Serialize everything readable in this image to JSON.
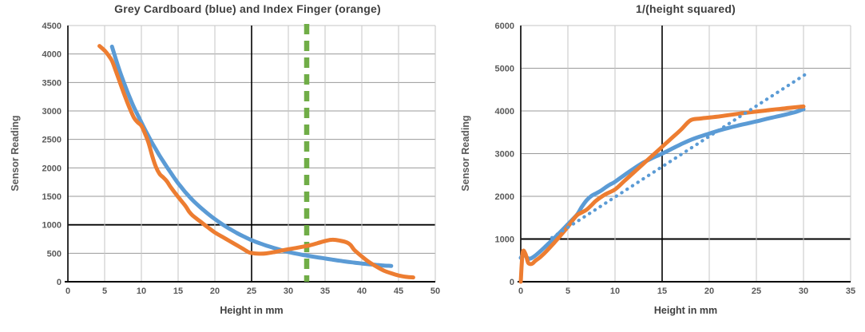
{
  "colors": {
    "blue": "#5b9bd5",
    "orange": "#ed7d31",
    "green_marker": "#70ad47",
    "grid_light": "#c6c6c6",
    "grid_mid": "#9a9a9a",
    "emphasis_line": "#000000",
    "axis_line": "#1a1a1a",
    "tick_text": "#595959",
    "title_text": "#3f3f3f",
    "raw_line": "#1a1a1a"
  },
  "chart_data": [
    {
      "type": "line",
      "title": "Grey Cardboard (blue) and Index Finger (orange)",
      "xlabel": "Height in mm",
      "ylabel": "Sensor Reading",
      "xlim": [
        0,
        50
      ],
      "ylim": [
        0,
        4500
      ],
      "x_ticks": [
        0,
        5,
        10,
        15,
        20,
        25,
        30,
        35,
        40,
        45,
        50
      ],
      "y_ticks": [
        0,
        500,
        1000,
        1500,
        2000,
        2500,
        3000,
        3500,
        4000,
        4500
      ],
      "grid": true,
      "legend": "none",
      "emphasized_gridline_x": 25,
      "emphasized_gridline_y": 1000,
      "marker_line": {
        "x": 32.5,
        "style": "dashed",
        "color": "#70ad47"
      },
      "series": [
        {
          "name": "grey-cardboard-blue",
          "color": "#5b9bd5",
          "style": "solid-smooth",
          "points": [
            [
              6,
              4130
            ],
            [
              6.5,
              3920
            ],
            [
              7,
              3720
            ],
            [
              7.5,
              3540
            ],
            [
              8,
              3370
            ],
            [
              8.5,
              3210
            ],
            [
              9,
              3060
            ],
            [
              9.5,
              2930
            ],
            [
              10,
              2800
            ],
            [
              10.5,
              2670
            ],
            [
              11,
              2550
            ],
            [
              11.5,
              2430
            ],
            [
              12,
              2320
            ],
            [
              12.5,
              2210
            ],
            [
              13,
              2110
            ],
            [
              13.5,
              2010
            ],
            [
              14,
              1915
            ],
            [
              14.5,
              1820
            ],
            [
              15,
              1730
            ],
            [
              15.5,
              1650
            ],
            [
              16,
              1570
            ],
            [
              17,
              1430
            ],
            [
              18,
              1310
            ],
            [
              19,
              1200
            ],
            [
              20,
              1100
            ],
            [
              21,
              1010
            ],
            [
              22,
              930
            ],
            [
              23,
              855
            ],
            [
              24,
              790
            ],
            [
              25,
              730
            ],
            [
              26,
              680
            ],
            [
              27,
              635
            ],
            [
              28,
              595
            ],
            [
              29,
              557
            ],
            [
              30,
              523
            ],
            [
              31,
              495
            ],
            [
              32,
              470
            ],
            [
              33,
              448
            ],
            [
              34,
              428
            ],
            [
              35,
              408
            ],
            [
              36,
              388
            ],
            [
              37,
              368
            ],
            [
              38,
              350
            ],
            [
              39,
              335
            ],
            [
              40,
              320
            ],
            [
              41,
              307
            ],
            [
              42,
              295
            ],
            [
              43,
              285
            ],
            [
              44,
              277
            ]
          ]
        },
        {
          "name": "index-finger-orange",
          "color": "#ed7d31",
          "style": "solid-smooth",
          "points": [
            [
              4.3,
              4140
            ],
            [
              5,
              4060
            ],
            [
              5.5,
              3980
            ],
            [
              6,
              3880
            ],
            [
              6.5,
              3710
            ],
            [
              7,
              3530
            ],
            [
              7.5,
              3350
            ],
            [
              8,
              3180
            ],
            [
              8.5,
              3020
            ],
            [
              9,
              2880
            ],
            [
              9.5,
              2800
            ],
            [
              10,
              2740
            ],
            [
              10.5,
              2600
            ],
            [
              11,
              2430
            ],
            [
              11.5,
              2200
            ],
            [
              12,
              2010
            ],
            [
              12.5,
              1890
            ],
            [
              13,
              1830
            ],
            [
              13.5,
              1760
            ],
            [
              14,
              1660
            ],
            [
              15,
              1490
            ],
            [
              16,
              1330
            ],
            [
              16.5,
              1230
            ],
            [
              17,
              1160
            ],
            [
              18,
              1060
            ],
            [
              19,
              960
            ],
            [
              20,
              865
            ],
            [
              21,
              790
            ],
            [
              22,
              715
            ],
            [
              23,
              640
            ],
            [
              24,
              565
            ],
            [
              24.5,
              525
            ],
            [
              25,
              505
            ],
            [
              26,
              492
            ],
            [
              27,
              497
            ],
            [
              28,
              518
            ],
            [
              29,
              545
            ],
            [
              30,
              570
            ],
            [
              31,
              592
            ],
            [
              32,
              615
            ],
            [
              33,
              642
            ],
            [
              34,
              678
            ],
            [
              35,
              715
            ],
            [
              36,
              738
            ],
            [
              37,
              722
            ],
            [
              38,
              688
            ],
            [
              38.5,
              640
            ],
            [
              39,
              555
            ],
            [
              40,
              445
            ],
            [
              41,
              345
            ],
            [
              42,
              265
            ],
            [
              43,
              195
            ],
            [
              44,
              148
            ],
            [
              45,
              110
            ],
            [
              46,
              85
            ],
            [
              47,
              75
            ]
          ]
        }
      ]
    },
    {
      "type": "line",
      "title": "1/(height squared)",
      "xlabel": "Height in mm",
      "ylabel": "Sensor Reading",
      "xlim": [
        0,
        35
      ],
      "ylim": [
        0,
        6000
      ],
      "x_ticks": [
        0,
        5,
        10,
        15,
        20,
        25,
        30,
        35
      ],
      "y_ticks": [
        0,
        1000,
        2000,
        3000,
        4000,
        5000,
        6000
      ],
      "grid": true,
      "legend": "none",
      "emphasized_gridline_x": 15,
      "emphasized_gridline_y": 1000,
      "series": [
        {
          "name": "grey-cardboard-blue",
          "color": "#5b9bd5",
          "style": "solid-smooth",
          "points": [
            [
              0,
              560
            ],
            [
              0.3,
              635
            ],
            [
              0.7,
              560
            ],
            [
              1,
              540
            ],
            [
              1.5,
              605
            ],
            [
              2,
              700
            ],
            [
              2.5,
              800
            ],
            [
              3,
              905
            ],
            [
              3.5,
              1010
            ],
            [
              4,
              1120
            ],
            [
              4.5,
              1230
            ],
            [
              5,
              1345
            ],
            [
              5.5,
              1460
            ],
            [
              6,
              1580
            ],
            [
              6.5,
              1760
            ],
            [
              7,
              1910
            ],
            [
              7.5,
              2010
            ],
            [
              8,
              2070
            ],
            [
              8.5,
              2130
            ],
            [
              9,
              2210
            ],
            [
              9.5,
              2280
            ],
            [
              10,
              2340
            ],
            [
              11,
              2500
            ],
            [
              12,
              2650
            ],
            [
              13,
              2790
            ],
            [
              14,
              2900
            ],
            [
              15,
              3000
            ],
            [
              16,
              3110
            ],
            [
              17,
              3220
            ],
            [
              18,
              3320
            ],
            [
              19,
              3400
            ],
            [
              20,
              3470
            ],
            [
              21,
              3540
            ],
            [
              22,
              3600
            ],
            [
              23,
              3655
            ],
            [
              24,
              3705
            ],
            [
              25,
              3755
            ],
            [
              26,
              3810
            ],
            [
              27,
              3860
            ],
            [
              28,
              3910
            ],
            [
              29,
              3965
            ],
            [
              30,
              4040
            ]
          ]
        },
        {
          "name": "index-finger-orange",
          "color": "#ed7d31",
          "style": "solid-smooth",
          "points": [
            [
              0,
              0
            ],
            [
              0.2,
              680
            ],
            [
              0.5,
              650
            ],
            [
              0.8,
              440
            ],
            [
              1.2,
              420
            ],
            [
              1.5,
              480
            ],
            [
              2,
              565
            ],
            [
              2.5,
              665
            ],
            [
              3,
              780
            ],
            [
              3.5,
              900
            ],
            [
              4,
              1025
            ],
            [
              4.5,
              1155
            ],
            [
              5,
              1285
            ],
            [
              5.5,
              1435
            ],
            [
              6,
              1565
            ],
            [
              6.5,
              1625
            ],
            [
              7,
              1690
            ],
            [
              7.5,
              1790
            ],
            [
              8,
              1900
            ],
            [
              9,
              2050
            ],
            [
              10,
              2160
            ],
            [
              11,
              2360
            ],
            [
              12,
              2560
            ],
            [
              13,
              2760
            ],
            [
              14,
              2960
            ],
            [
              15,
              3160
            ],
            [
              16,
              3360
            ],
            [
              17,
              3560
            ],
            [
              18,
              3780
            ],
            [
              19,
              3820
            ],
            [
              20,
              3845
            ],
            [
              21,
              3870
            ],
            [
              22,
              3900
            ],
            [
              24,
              3960
            ],
            [
              26,
              4010
            ],
            [
              28,
              4060
            ],
            [
              30,
              4105
            ]
          ]
        },
        {
          "name": "blue-dotted-trendline",
          "color": "#5b9bd5",
          "style": "dotted",
          "points": [
            [
              3.3,
              1030
            ],
            [
              30.3,
              4870
            ]
          ]
        }
      ]
    }
  ]
}
